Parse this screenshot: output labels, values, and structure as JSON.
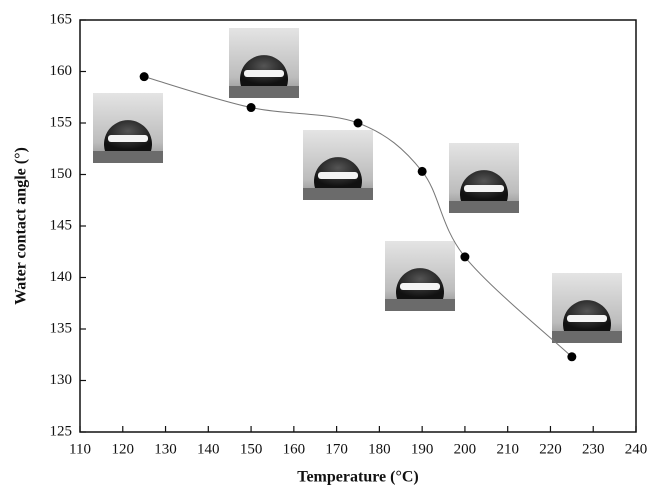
{
  "chart_data": {
    "type": "scatter",
    "x_label": "Temperature (°C)",
    "y_label": "Water contact angle (°)",
    "series": [
      {
        "x": [
          125,
          150,
          175,
          190,
          200,
          225
        ],
        "values": [
          159.5,
          156.5,
          155.0,
          150.3,
          142.0,
          132.3
        ],
        "color": "#000000"
      }
    ],
    "xlim": [
      110,
      240
    ],
    "xticks": [
      110,
      120,
      130,
      140,
      150,
      160,
      170,
      180,
      190,
      200,
      210,
      220,
      230,
      240
    ],
    "ylim": [
      125,
      165
    ],
    "yticks": [
      125,
      130,
      135,
      140,
      145,
      150,
      155,
      160,
      165
    ],
    "grid": false
  }
}
